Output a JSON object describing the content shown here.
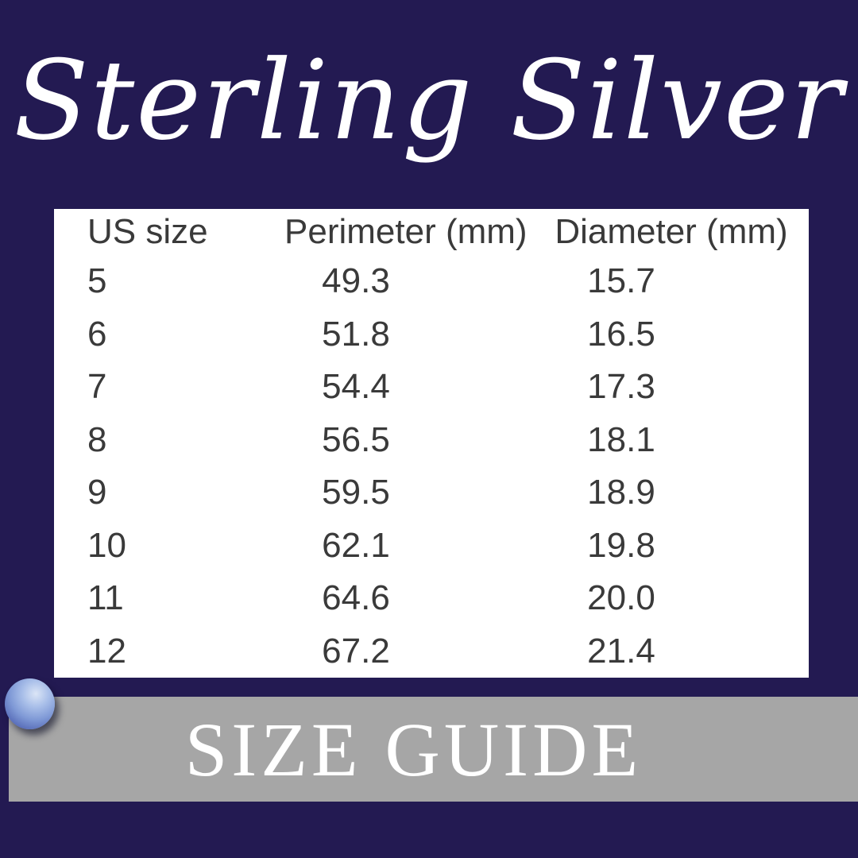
{
  "header": {
    "title": "Sterling Silver"
  },
  "banner": {
    "label": "SIZE GUIDE"
  },
  "icons": {
    "pearl": "pearl-sphere-icon"
  },
  "colors": {
    "background_navy": "#231a52",
    "panel_white": "#ffffff",
    "table_text": "#3a3a3a",
    "banner_gray": "#a6a6a6",
    "banner_text": "#ffffff",
    "title_text": "#ffffff",
    "pearl_highlight": "#dbe5f6",
    "pearl_mid": "#7f99d6",
    "pearl_shadow": "#434f97"
  },
  "chart_data": {
    "type": "table",
    "title": "Sterling Silver",
    "subtitle": "SIZE GUIDE",
    "columns": [
      "US size",
      "Perimeter (mm)",
      "Diameter (mm)"
    ],
    "rows": [
      [
        "5",
        "49.3",
        "15.7"
      ],
      [
        "6",
        "51.8",
        "16.5"
      ],
      [
        "7",
        "54.4",
        "17.3"
      ],
      [
        "8",
        "56.5",
        "18.1"
      ],
      [
        "9",
        "59.5",
        "18.9"
      ],
      [
        "10",
        "62.1",
        "19.8"
      ],
      [
        "11",
        "64.6",
        "20.0"
      ],
      [
        "12",
        "67.2",
        "21.4"
      ]
    ]
  }
}
